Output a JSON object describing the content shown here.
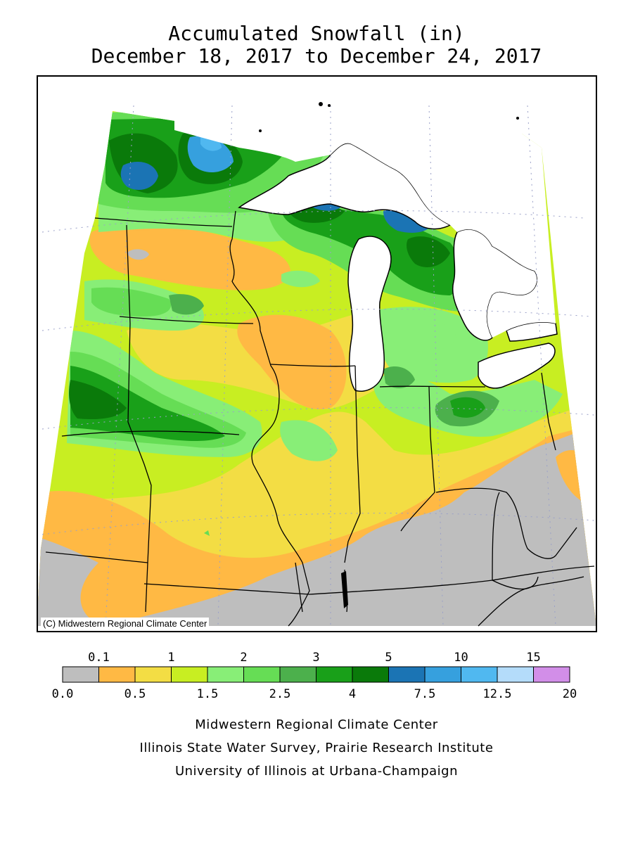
{
  "title_line1": "Accumulated Snowfall (in)",
  "title_line2": "December 18, 2017 to December 24, 2017",
  "copyright": "(C) Midwestern Regional Climate Center",
  "legend": {
    "top_labels": [
      "0.1",
      "1",
      "2",
      "3",
      "5",
      "10",
      "15"
    ],
    "bottom_labels": [
      "0.0",
      "0.5",
      "1.5",
      "2.5",
      "4",
      "7.5",
      "12.5",
      "20"
    ],
    "bins": [
      {
        "color": "#bebebe"
      },
      {
        "color": "#ffb944"
      },
      {
        "color": "#f3dd44"
      },
      {
        "color": "#c8ee22"
      },
      {
        "color": "#88ee77"
      },
      {
        "color": "#66dd55"
      },
      {
        "color": "#4cb04c"
      },
      {
        "color": "#19a019"
      },
      {
        "color": "#0a7a0a"
      },
      {
        "color": "#1b74b4"
      },
      {
        "color": "#36a0de"
      },
      {
        "color": "#50b8f0"
      },
      {
        "color": "#b4dcfa"
      },
      {
        "color": "#d28ee8"
      }
    ]
  },
  "credits": [
    "Midwestern Regional Climate Center",
    "Illinois State Water Survey, Prairie Research Institute",
    "University of Illinois at Urbana-Champaign"
  ]
}
